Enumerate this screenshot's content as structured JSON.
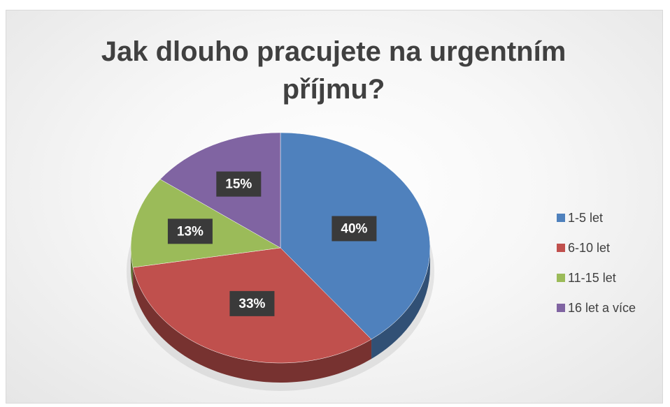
{
  "chart_data": {
    "type": "pie",
    "title": "Jak dlouho pracujete na urgentním příjmu?",
    "categories": [
      "1-5 let",
      "6-10 let",
      "11-15 let",
      "16 let a více"
    ],
    "values": [
      40,
      33,
      13,
      15
    ],
    "value_labels": [
      "40%",
      "33%",
      "13%",
      "15%"
    ],
    "colors": [
      "#4f81bd",
      "#c0504d",
      "#9bbb59",
      "#8064a2"
    ],
    "legend": "right"
  }
}
